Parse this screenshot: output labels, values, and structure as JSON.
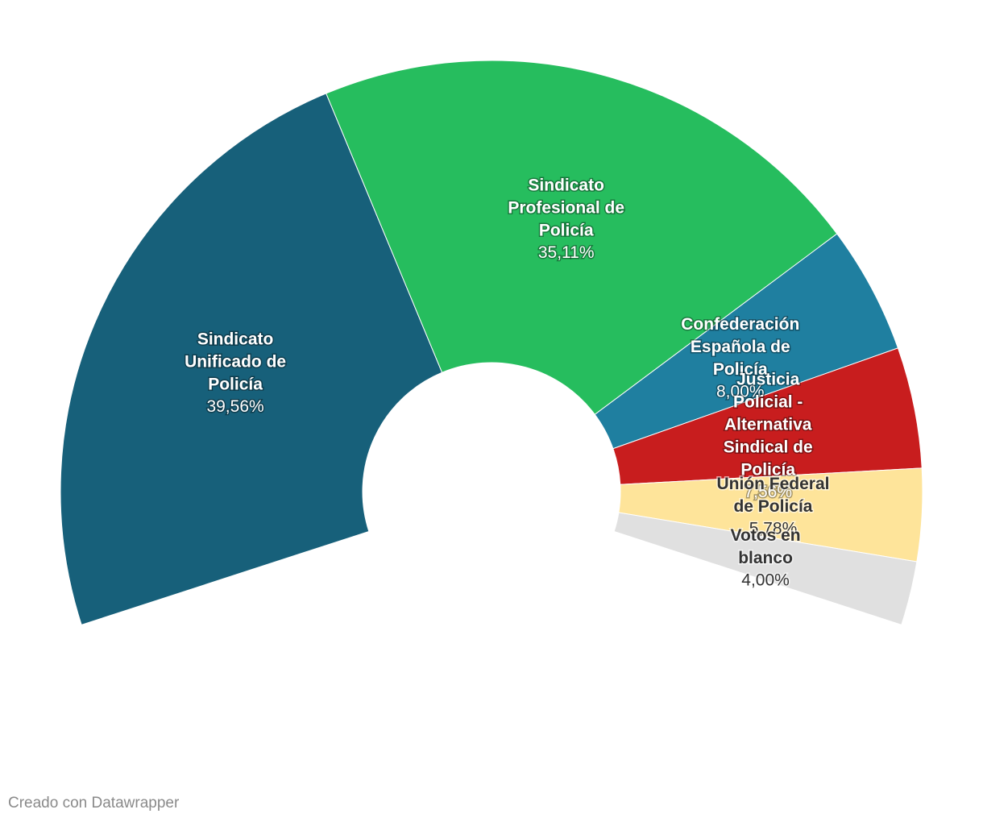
{
  "chart_data": {
    "type": "donut",
    "categories": [
      "Sindicato Unificado de Policía",
      "Sindicato Profesional de Policía",
      "Confederación Española de Policía",
      "Justicia Policial - Alternativa Sindical de Policía",
      "Unión Federal de Policía",
      "Votos en blanco"
    ],
    "values": [
      39.56,
      35.11,
      8.0,
      7.56,
      5.78,
      4.0
    ],
    "value_labels": [
      "39,56%",
      "35,11%",
      "8,00%",
      "7,56%",
      "5,78%",
      "4,00%"
    ],
    "colors": [
      "#17607a",
      "#26bd5e",
      "#1f7fa0",
      "#c81d1e",
      "#fee49a",
      "#e0e0e0"
    ],
    "footer": "Creado con Datawrapper"
  }
}
